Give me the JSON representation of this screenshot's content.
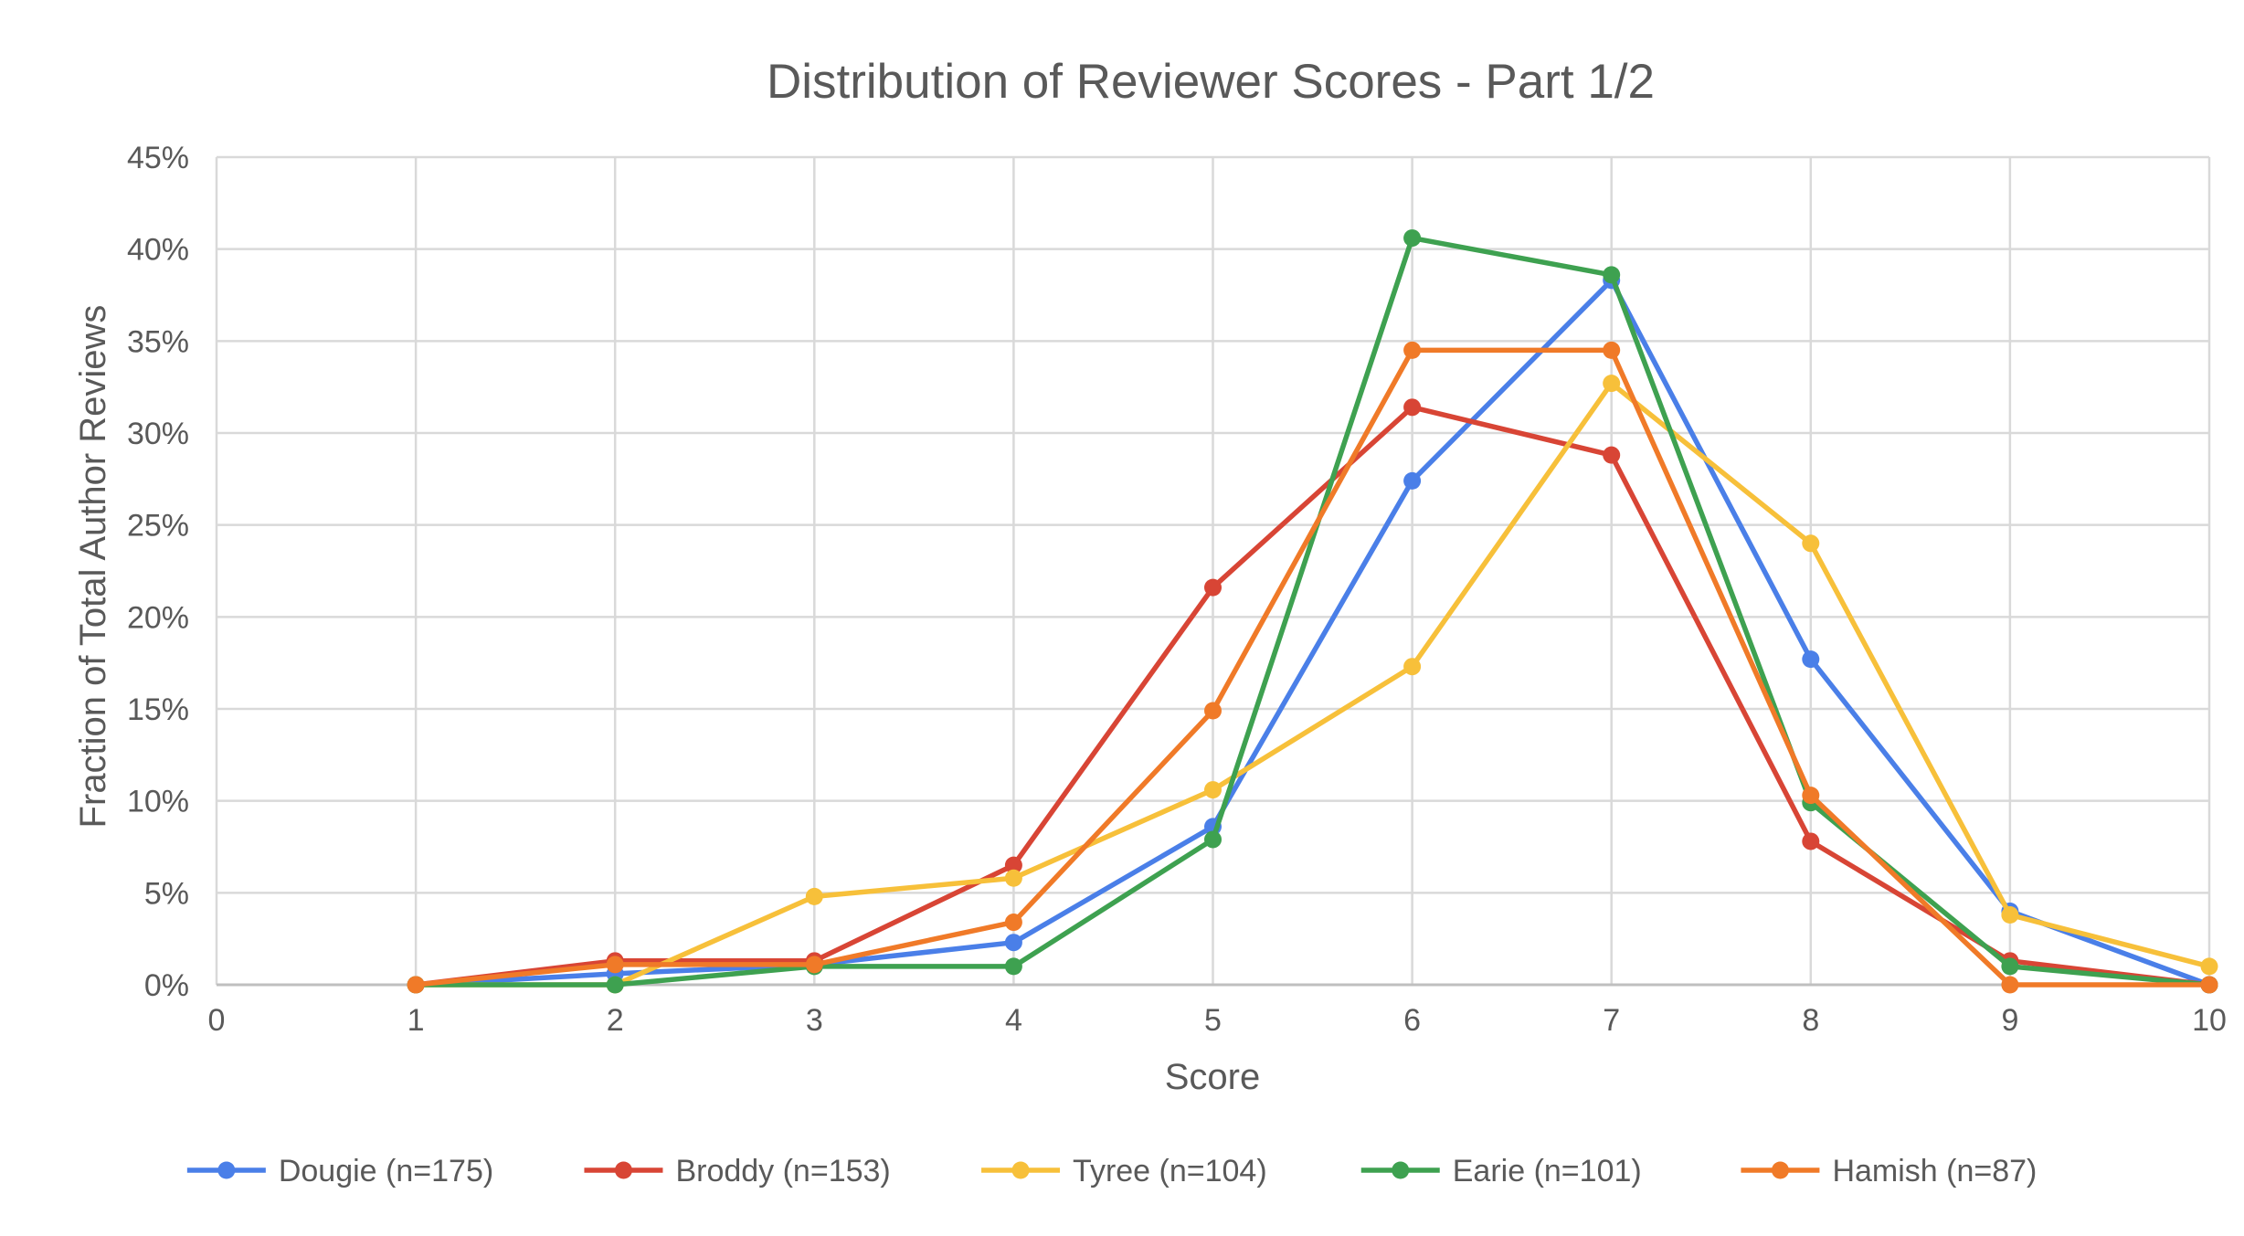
{
  "chart_data": {
    "type": "line",
    "title": "Distribution of Reviewer Scores - Part 1/2",
    "xlabel": "Score",
    "ylabel": "Fraction of Total Author Reviews",
    "xlim": [
      0,
      10
    ],
    "ylim": [
      0,
      45
    ],
    "x_ticks": [
      "0",
      "1",
      "2",
      "3",
      "4",
      "5",
      "6",
      "7",
      "8",
      "9",
      "10"
    ],
    "y_ticks": [
      "0%",
      "5%",
      "10%",
      "15%",
      "20%",
      "25%",
      "30%",
      "35%",
      "40%",
      "45%"
    ],
    "y_unit": "percent",
    "grid": true,
    "legend_position": "bottom",
    "x": [
      1,
      2,
      3,
      4,
      5,
      6,
      7,
      8,
      9,
      10
    ],
    "series": [
      {
        "name": "Dougie (n=175)",
        "color": "#4a7fe8",
        "values": [
          0,
          0.6,
          1.1,
          2.3,
          8.6,
          27.4,
          38.3,
          17.7,
          4.0,
          0
        ]
      },
      {
        "name": "Broddy (n=153)",
        "color": "#d84535",
        "values": [
          0,
          1.3,
          1.3,
          6.5,
          21.6,
          31.4,
          28.8,
          7.8,
          1.3,
          0
        ]
      },
      {
        "name": "Tyree (n=104)",
        "color": "#f7c03a",
        "values": [
          0,
          0,
          4.8,
          5.8,
          10.6,
          17.3,
          32.7,
          24.0,
          3.8,
          1.0
        ]
      },
      {
        "name": "Earie (n=101)",
        "color": "#3ea150",
        "values": [
          0,
          0,
          1.0,
          1.0,
          7.9,
          40.6,
          38.6,
          9.9,
          1.0,
          0
        ]
      },
      {
        "name": "Hamish (n=87)",
        "color": "#f07a28",
        "values": [
          0,
          1.1,
          1.1,
          3.4,
          14.9,
          34.5,
          34.5,
          10.3,
          0,
          0
        ]
      }
    ]
  }
}
